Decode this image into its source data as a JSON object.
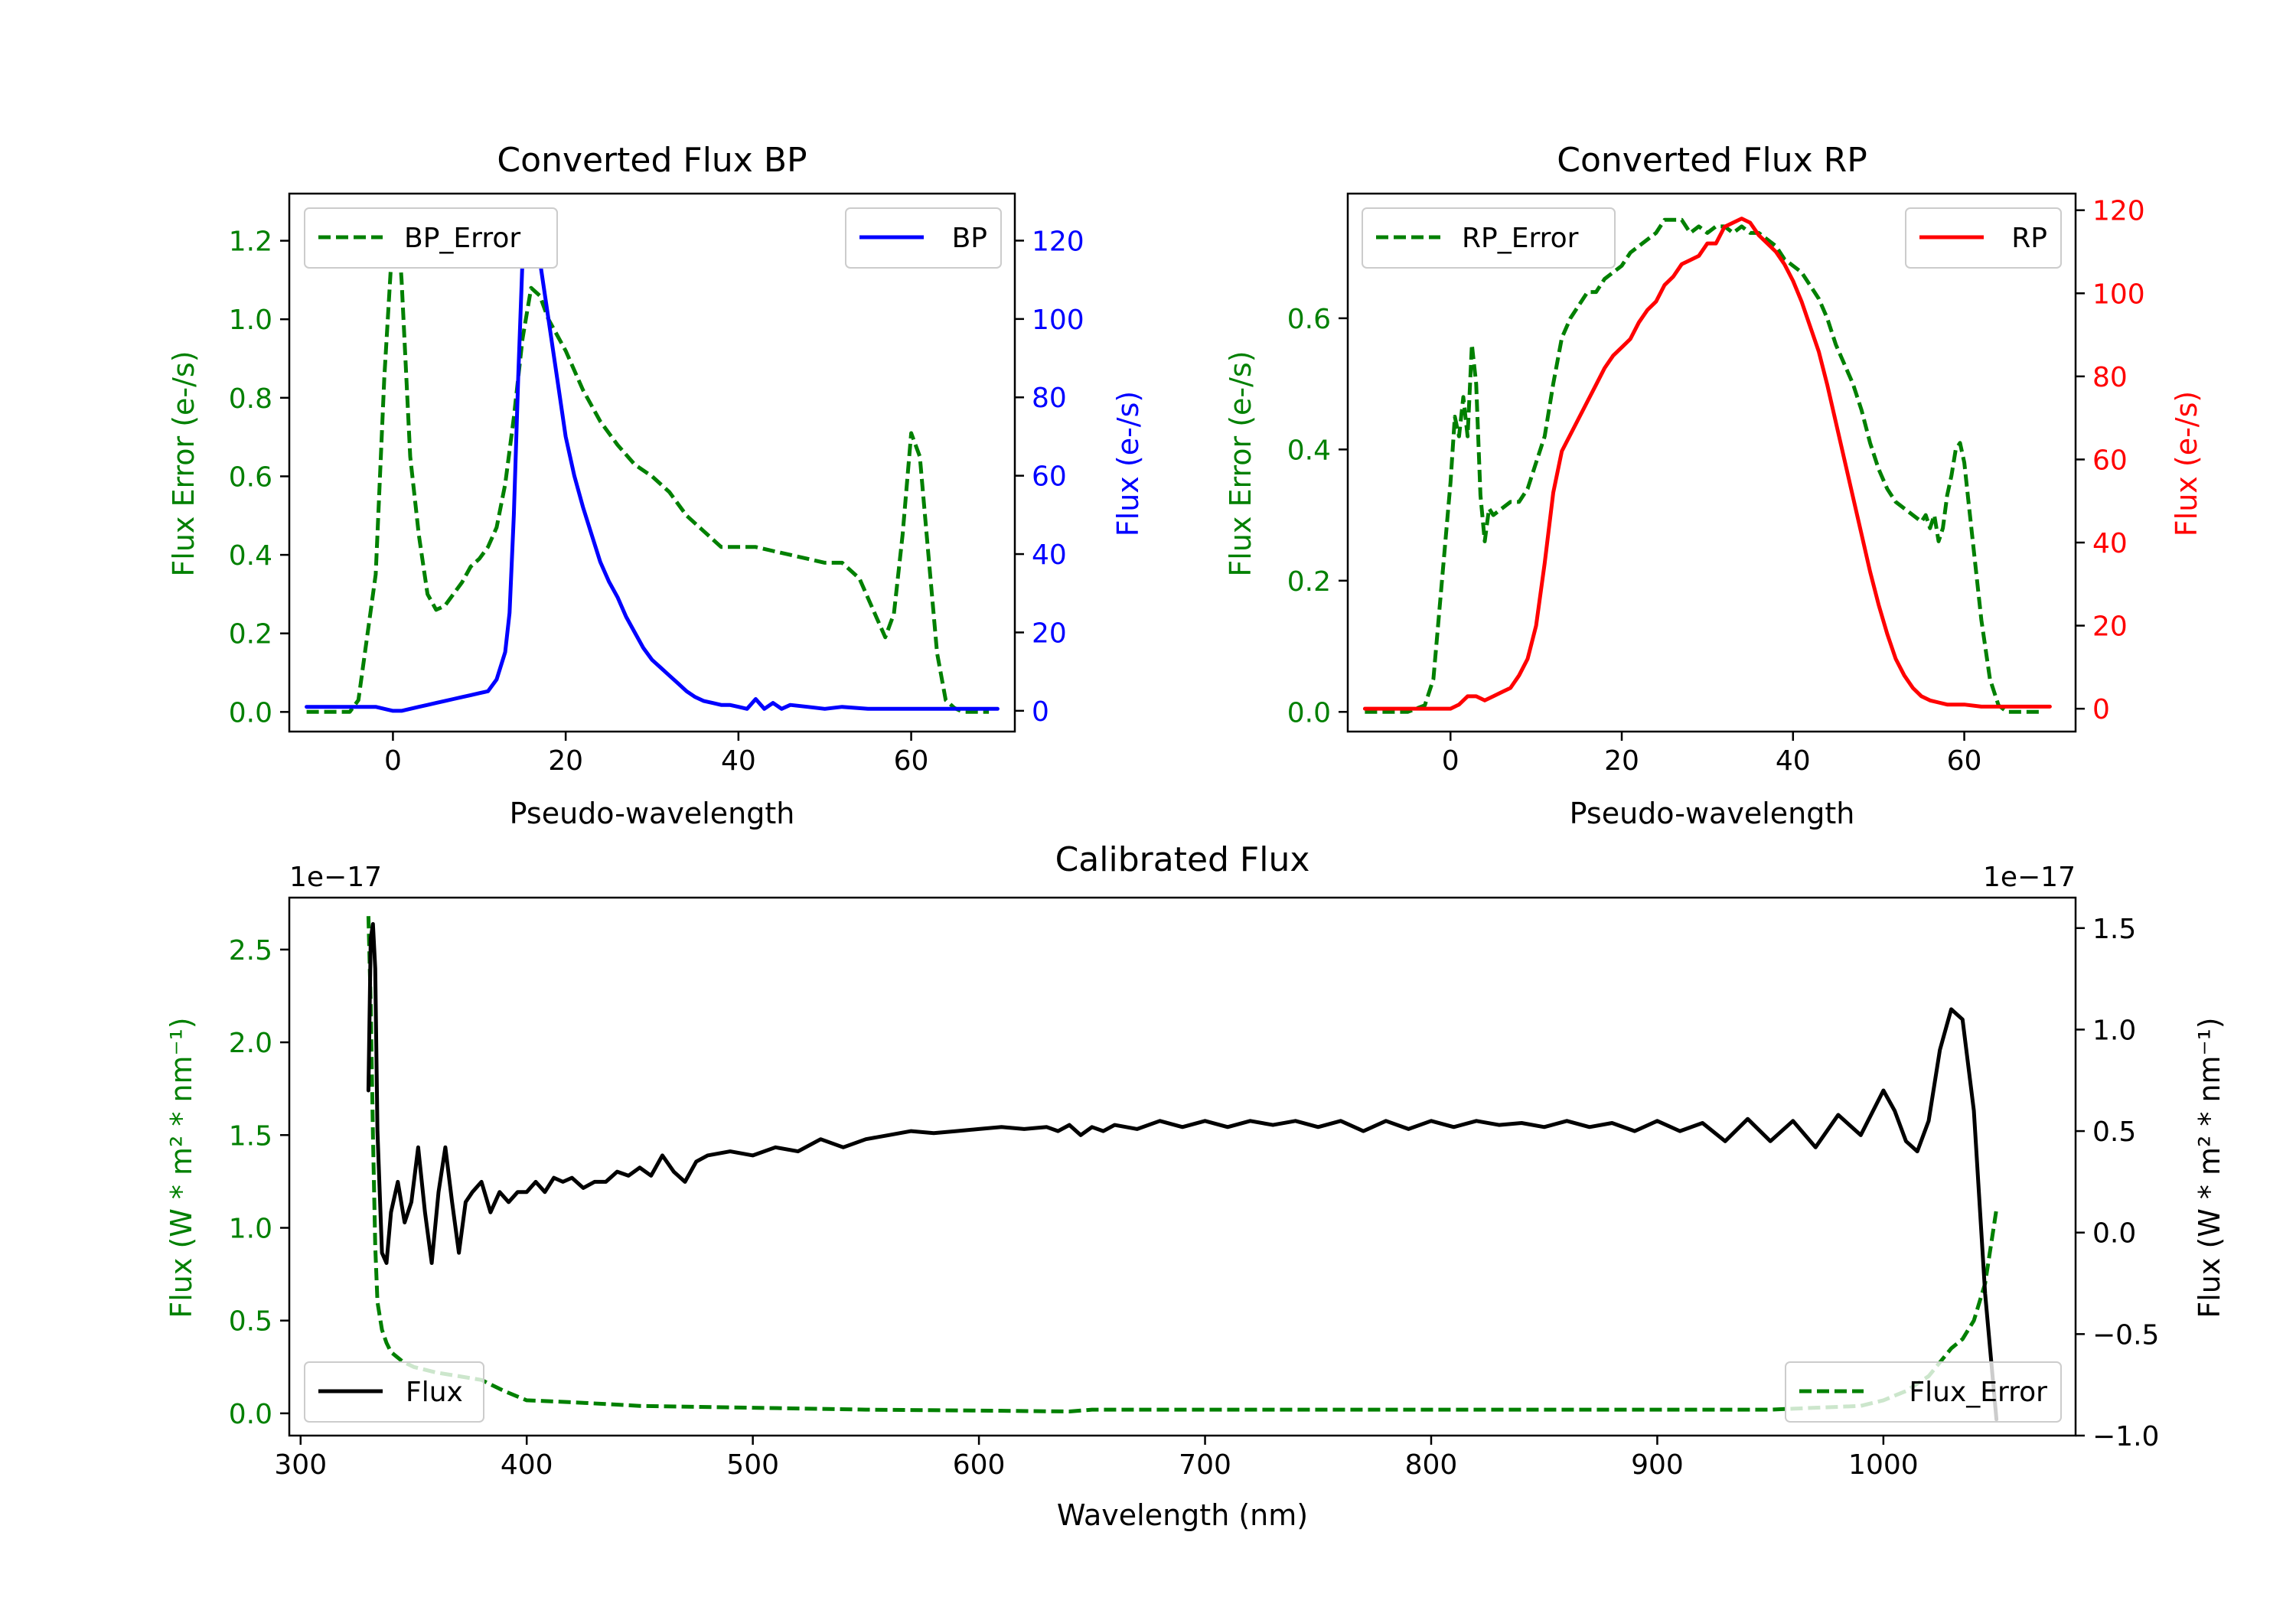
{
  "chart_data": [
    {
      "type": "line",
      "title": "Converted Flux BP",
      "xlabel": "Pseudo-wavelength",
      "xlim": [
        -12,
        72
      ],
      "xticks": [
        0,
        20,
        40,
        60
      ],
      "left_axis": {
        "label": "Flux Error (e-/s)",
        "color": "#008000",
        "ylim": [
          -0.05,
          1.32
        ],
        "ticks": [
          0.0,
          0.2,
          0.4,
          0.6,
          0.8,
          1.0,
          1.2
        ],
        "tick_labels": [
          "0.0",
          "0.2",
          "0.4",
          "0.6",
          "0.8",
          "1.0",
          "1.2"
        ]
      },
      "right_axis": {
        "label": "Flux (e-/s)",
        "color": "#0000ff",
        "ylim": [
          -5.3,
          132
        ],
        "ticks": [
          0,
          20,
          40,
          60,
          80,
          100,
          120
        ],
        "tick_labels": [
          "0",
          "20",
          "40",
          "60",
          "80",
          "100",
          "120"
        ]
      },
      "series": [
        {
          "name": "BP_Error",
          "axis": "left",
          "color": "#008000",
          "style": "dashed",
          "legend_position": "upper left",
          "x": [
            -10,
            -5,
            -4,
            -2,
            -1,
            0,
            0.5,
            1,
            2,
            3,
            4,
            5,
            6,
            7,
            8,
            9,
            10,
            11,
            12,
            13,
            14,
            15,
            16,
            17,
            18,
            20,
            22,
            24,
            26,
            28,
            30,
            32,
            34,
            36,
            38,
            40,
            42,
            44,
            46,
            48,
            50,
            52,
            54,
            56,
            57,
            58,
            59,
            60,
            61,
            62,
            63,
            64,
            65,
            66,
            67,
            68,
            69
          ],
          "y": [
            0.0,
            0.0,
            0.03,
            0.35,
            0.85,
            1.22,
            1.26,
            1.1,
            0.65,
            0.45,
            0.3,
            0.26,
            0.27,
            0.3,
            0.33,
            0.37,
            0.39,
            0.42,
            0.47,
            0.58,
            0.75,
            0.95,
            1.08,
            1.06,
            1.0,
            0.92,
            0.82,
            0.74,
            0.68,
            0.63,
            0.6,
            0.56,
            0.5,
            0.46,
            0.42,
            0.42,
            0.42,
            0.41,
            0.4,
            0.39,
            0.38,
            0.38,
            0.34,
            0.24,
            0.19,
            0.25,
            0.45,
            0.71,
            0.65,
            0.4,
            0.15,
            0.03,
            0.01,
            0.0,
            0.0,
            0.0,
            0.0
          ]
        },
        {
          "name": "BP",
          "axis": "right",
          "color": "#0000ff",
          "style": "solid",
          "legend_position": "upper right",
          "x": [
            -10,
            -5,
            -2,
            0,
            1,
            2,
            3,
            4,
            5,
            6,
            7,
            8,
            9,
            10,
            11,
            12,
            13,
            13.5,
            14,
            14.5,
            15,
            15.5,
            16,
            17,
            18,
            19,
            20,
            21,
            22,
            23,
            24,
            25,
            26,
            27,
            28,
            29,
            30,
            31,
            32,
            33,
            34,
            35,
            36,
            37,
            38,
            39,
            40,
            41,
            42,
            43,
            44,
            45,
            46,
            48,
            50,
            52,
            55,
            60,
            65,
            70
          ],
          "y": [
            1,
            1,
            1,
            0,
            0,
            0.5,
            1,
            1.5,
            2,
            2.5,
            3,
            3.5,
            4,
            4.5,
            5,
            8,
            15,
            25,
            50,
            85,
            115,
            126,
            124,
            115,
            100,
            85,
            70,
            60,
            52,
            45,
            38,
            33,
            29,
            24,
            20,
            16,
            13,
            11,
            9,
            7,
            5,
            3.5,
            2.5,
            2,
            1.5,
            1.5,
            1,
            0.5,
            3,
            0.5,
            2,
            0.5,
            1.5,
            1,
            0.5,
            1,
            0.5,
            0.5,
            0.5,
            0.5
          ]
        }
      ]
    },
    {
      "type": "line",
      "title": "Converted Flux RP",
      "xlabel": "Pseudo-wavelength",
      "xlim": [
        -12,
        73
      ],
      "xticks": [
        0,
        20,
        40,
        60
      ],
      "left_axis": {
        "label": "Flux Error (e-/s)",
        "color": "#008000",
        "ylim": [
          -0.03,
          0.79
        ],
        "ticks": [
          0.0,
          0.2,
          0.4,
          0.6
        ],
        "tick_labels": [
          "0.0",
          "0.2",
          "0.4",
          "0.6"
        ]
      },
      "right_axis": {
        "label": "Flux (e-/s)",
        "color": "#ff0000",
        "ylim": [
          -5.5,
          124
        ],
        "ticks": [
          0,
          20,
          40,
          60,
          80,
          100,
          120
        ],
        "tick_labels": [
          "0",
          "20",
          "40",
          "60",
          "80",
          "100",
          "120"
        ]
      },
      "series": [
        {
          "name": "RP_Error",
          "axis": "left",
          "color": "#008000",
          "style": "dashed",
          "legend_position": "upper left",
          "x": [
            -10,
            -5,
            -3,
            -2,
            -1,
            0,
            0.5,
            1,
            1.5,
            2,
            2.5,
            3,
            3.5,
            4,
            4.5,
            5,
            6,
            7,
            8,
            9,
            10,
            11,
            12,
            13,
            14,
            15,
            16,
            17,
            18,
            19,
            20,
            21,
            22,
            23,
            24,
            25,
            26,
            27,
            28,
            29,
            30,
            31,
            32,
            33,
            34,
            35,
            36,
            37,
            38,
            39,
            40,
            41,
            42,
            43,
            44,
            45,
            46,
            47,
            48,
            49,
            50,
            51,
            52,
            53,
            54,
            55,
            55.5,
            56,
            56.5,
            57,
            57.5,
            58,
            58.5,
            59,
            59.5,
            60,
            60.5,
            61,
            62,
            63,
            64,
            65,
            66,
            67,
            68,
            69
          ],
          "y": [
            0.0,
            0.0,
            0.01,
            0.05,
            0.2,
            0.35,
            0.45,
            0.42,
            0.48,
            0.42,
            0.56,
            0.5,
            0.33,
            0.26,
            0.31,
            0.3,
            0.31,
            0.32,
            0.32,
            0.34,
            0.38,
            0.42,
            0.5,
            0.57,
            0.6,
            0.62,
            0.64,
            0.64,
            0.66,
            0.67,
            0.68,
            0.7,
            0.71,
            0.72,
            0.73,
            0.75,
            0.75,
            0.75,
            0.73,
            0.74,
            0.73,
            0.74,
            0.74,
            0.73,
            0.74,
            0.73,
            0.73,
            0.72,
            0.71,
            0.69,
            0.68,
            0.67,
            0.65,
            0.63,
            0.6,
            0.56,
            0.53,
            0.5,
            0.46,
            0.41,
            0.37,
            0.34,
            0.32,
            0.31,
            0.3,
            0.29,
            0.3,
            0.28,
            0.3,
            0.26,
            0.28,
            0.33,
            0.36,
            0.4,
            0.41,
            0.38,
            0.32,
            0.26,
            0.14,
            0.05,
            0.01,
            0.0,
            0.0,
            0.0,
            0.0,
            0.0
          ]
        },
        {
          "name": "RP",
          "axis": "right",
          "color": "#ff0000",
          "style": "solid",
          "legend_position": "upper right",
          "x": [
            -10,
            -5,
            -3,
            -2,
            -1,
            0,
            1,
            2,
            3,
            4,
            5,
            6,
            7,
            8,
            9,
            10,
            11,
            12,
            13,
            14,
            15,
            16,
            17,
            18,
            19,
            20,
            21,
            22,
            23,
            24,
            25,
            26,
            27,
            28,
            29,
            30,
            31,
            32,
            33,
            34,
            35,
            36,
            37,
            38,
            39,
            40,
            41,
            42,
            43,
            44,
            45,
            46,
            47,
            48,
            49,
            50,
            51,
            52,
            53,
            54,
            55,
            56,
            57,
            58,
            60,
            62,
            65,
            70
          ],
          "y": [
            0,
            0,
            0,
            0,
            0,
            0,
            1,
            3,
            3,
            2,
            3,
            4,
            5,
            8,
            12,
            20,
            35,
            52,
            62,
            66,
            70,
            74,
            78,
            82,
            85,
            87,
            89,
            93,
            96,
            98,
            102,
            104,
            107,
            108,
            109,
            112,
            112,
            116,
            117,
            118,
            117,
            114,
            112,
            110,
            107,
            103,
            98,
            92,
            86,
            78,
            69,
            60,
            51,
            42,
            33,
            25,
            18,
            12,
            8,
            5,
            3,
            2,
            1.5,
            1,
            1,
            0.5,
            0.5,
            0.5
          ]
        }
      ]
    },
    {
      "type": "line",
      "title": "Calibrated Flux",
      "xlabel": "Wavelength (nm)",
      "xlim": [
        295,
        1085
      ],
      "xticks": [
        300,
        400,
        500,
        600,
        700,
        800,
        900,
        1000
      ],
      "left_axis": {
        "label": "Flux (W * m² * nm⁻¹)",
        "color": "#008000",
        "offset_text": "1e−17",
        "ylim": [
          -0.12,
          2.78
        ],
        "ticks": [
          0.0,
          0.5,
          1.0,
          1.5,
          2.0,
          2.5
        ],
        "tick_labels": [
          "0.0",
          "0.5",
          "1.0",
          "1.5",
          "2.0",
          "2.5"
        ]
      },
      "right_axis": {
        "label": "Flux (W * m² * nm⁻¹)",
        "color": "#000000",
        "offset_text": "1e−17",
        "ylim": [
          -1.0,
          1.65
        ],
        "ticks": [
          -1.0,
          -0.5,
          0.0,
          0.5,
          1.0,
          1.5
        ],
        "tick_labels": [
          "−1.0",
          "−0.5",
          "0.0",
          "0.5",
          "1.0",
          "1.5"
        ]
      },
      "series": [
        {
          "name": "Flux_Error",
          "axis": "left",
          "color": "#008000",
          "style": "dashed",
          "legend_position": "lower right",
          "x": [
            330,
            331,
            332,
            333,
            334,
            336,
            338,
            340,
            345,
            350,
            360,
            370,
            380,
            390,
            400,
            420,
            450,
            500,
            550,
            600,
            640,
            650,
            700,
            800,
            900,
            950,
            990,
            1000,
            1010,
            1020,
            1030,
            1035,
            1040,
            1045,
            1050
          ],
          "y": [
            2.68,
            2.2,
            1.5,
            0.9,
            0.6,
            0.45,
            0.38,
            0.33,
            0.28,
            0.25,
            0.22,
            0.2,
            0.18,
            0.12,
            0.07,
            0.06,
            0.04,
            0.03,
            0.02,
            0.015,
            0.01,
            0.02,
            0.02,
            0.02,
            0.02,
            0.02,
            0.04,
            0.07,
            0.12,
            0.2,
            0.35,
            0.4,
            0.5,
            0.7,
            1.1
          ]
        },
        {
          "name": "Flux",
          "axis": "right",
          "color": "#000000",
          "style": "solid",
          "legend_position": "lower left",
          "x": [
            330,
            331,
            332,
            333,
            334,
            336,
            338,
            340,
            343,
            346,
            349,
            352,
            355,
            358,
            361,
            364,
            367,
            370,
            373,
            376,
            380,
            384,
            388,
            392,
            396,
            400,
            404,
            408,
            412,
            416,
            420,
            425,
            430,
            435,
            440,
            445,
            450,
            455,
            460,
            465,
            470,
            475,
            480,
            490,
            500,
            510,
            520,
            530,
            540,
            550,
            560,
            570,
            580,
            590,
            600,
            610,
            620,
            630,
            635,
            640,
            645,
            650,
            655,
            660,
            670,
            680,
            690,
            700,
            710,
            720,
            730,
            740,
            750,
            760,
            770,
            780,
            790,
            800,
            810,
            820,
            830,
            840,
            850,
            860,
            870,
            880,
            890,
            900,
            910,
            920,
            930,
            940,
            950,
            960,
            970,
            980,
            990,
            1000,
            1005,
            1010,
            1015,
            1020,
            1025,
            1030,
            1035,
            1040,
            1045,
            1050
          ],
          "y": [
            0.7,
            1.45,
            1.52,
            1.3,
            0.5,
            -0.1,
            -0.15,
            0.1,
            0.25,
            0.05,
            0.15,
            0.42,
            0.1,
            -0.15,
            0.2,
            0.42,
            0.15,
            -0.1,
            0.15,
            0.2,
            0.25,
            0.1,
            0.2,
            0.15,
            0.2,
            0.2,
            0.25,
            0.2,
            0.27,
            0.25,
            0.27,
            0.22,
            0.25,
            0.25,
            0.3,
            0.28,
            0.32,
            0.28,
            0.38,
            0.3,
            0.25,
            0.35,
            0.38,
            0.4,
            0.38,
            0.42,
            0.4,
            0.46,
            0.42,
            0.46,
            0.48,
            0.5,
            0.49,
            0.5,
            0.51,
            0.52,
            0.51,
            0.52,
            0.5,
            0.53,
            0.48,
            0.52,
            0.5,
            0.53,
            0.51,
            0.55,
            0.52,
            0.55,
            0.52,
            0.55,
            0.53,
            0.55,
            0.52,
            0.55,
            0.5,
            0.55,
            0.51,
            0.55,
            0.52,
            0.55,
            0.53,
            0.54,
            0.52,
            0.55,
            0.52,
            0.54,
            0.5,
            0.55,
            0.5,
            0.54,
            0.45,
            0.56,
            0.45,
            0.55,
            0.42,
            0.58,
            0.48,
            0.7,
            0.6,
            0.45,
            0.4,
            0.55,
            0.9,
            1.1,
            1.05,
            0.6,
            -0.3,
            -0.92
          ]
        }
      ]
    }
  ]
}
